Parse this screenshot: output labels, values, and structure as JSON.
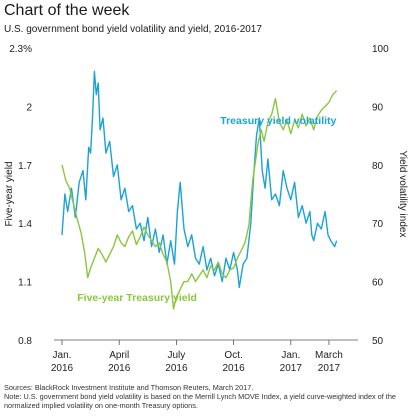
{
  "header": {
    "heading": "Chart of the week",
    "subtitle": "U.S. government bond yield volatility and yield, 2016-2017"
  },
  "footer": {
    "sources": "Sources: BlackRock Investment Institute and Thomson Reuters, March 2017.",
    "note_line1": "Note: U.S. government bond yield volatility is based on the Merrill Lynch MOVE Index, a yield curve-weighted index of the",
    "note_line2": "normalized implied volatility on one-month Treasury options."
  },
  "chart_data": {
    "type": "line",
    "title": "",
    "ylabel_left": "Five-year yield",
    "ylabel_right": "Yield volatility index",
    "ylim_left": [
      0.8,
      2.3
    ],
    "ylim_right": [
      50,
      100
    ],
    "left_ticks": [
      "0.8",
      "1.1",
      "1.4",
      "1.7",
      "2",
      "2.3%"
    ],
    "left_tick_values": [
      0.8,
      1.1,
      1.4,
      1.7,
      2.0,
      2.3
    ],
    "right_ticks": [
      "50",
      "60",
      "70",
      "80",
      "90",
      "100"
    ],
    "right_tick_values": [
      50,
      60,
      70,
      80,
      90,
      100
    ],
    "x_range": [
      0,
      15
    ],
    "x_ticks": [
      {
        "month": "Jan.",
        "year": "2016",
        "x": 0
      },
      {
        "month": "April",
        "year": "2016",
        "x": 3
      },
      {
        "month": "July",
        "year": "2016",
        "x": 6
      },
      {
        "month": "Oct.",
        "year": "2016",
        "x": 9
      },
      {
        "month": "Jan.",
        "year": "2017",
        "x": 12
      },
      {
        "month": "March",
        "year": "2017",
        "x": 14
      }
    ],
    "grid": false,
    "series": [
      {
        "name": "Treasury yield volatility",
        "axis": "right",
        "color": "#1aa3d4",
        "points": [
          [
            0,
            68
          ],
          [
            0.15,
            75
          ],
          [
            0.3,
            72
          ],
          [
            0.5,
            76
          ],
          [
            0.7,
            71
          ],
          [
            0.9,
            77
          ],
          [
            1.1,
            79
          ],
          [
            1.25,
            74
          ],
          [
            1.4,
            83
          ],
          [
            1.5,
            82
          ],
          [
            1.6,
            88
          ],
          [
            1.7,
            96
          ],
          [
            1.8,
            92
          ],
          [
            1.9,
            94
          ],
          [
            2.0,
            86
          ],
          [
            2.15,
            88
          ],
          [
            2.3,
            82
          ],
          [
            2.5,
            84
          ],
          [
            2.7,
            78
          ],
          [
            2.9,
            80
          ],
          [
            3.1,
            74
          ],
          [
            3.3,
            76
          ],
          [
            3.5,
            72
          ],
          [
            3.7,
            73
          ],
          [
            3.9,
            69
          ],
          [
            4.1,
            70
          ],
          [
            4.3,
            67
          ],
          [
            4.5,
            71
          ],
          [
            4.7,
            66
          ],
          [
            4.9,
            69
          ],
          [
            5.1,
            65
          ],
          [
            5.3,
            68
          ],
          [
            5.5,
            63
          ],
          [
            5.7,
            67
          ],
          [
            5.9,
            63
          ],
          [
            6.05,
            72
          ],
          [
            6.2,
            77
          ],
          [
            6.4,
            69
          ],
          [
            6.6,
            66
          ],
          [
            6.8,
            68
          ],
          [
            7.0,
            64
          ],
          [
            7.2,
            63
          ],
          [
            7.4,
            66
          ],
          [
            7.6,
            62
          ],
          [
            7.8,
            64
          ],
          [
            8.0,
            61
          ],
          [
            8.2,
            63
          ],
          [
            8.4,
            60
          ],
          [
            8.6,
            64
          ],
          [
            8.8,
            62
          ],
          [
            9.0,
            65
          ],
          [
            9.2,
            62
          ],
          [
            9.3,
            59
          ],
          [
            9.5,
            63
          ],
          [
            9.7,
            64
          ],
          [
            9.9,
            70
          ],
          [
            10.05,
            78
          ],
          [
            10.2,
            85
          ],
          [
            10.35,
            88
          ],
          [
            10.5,
            79
          ],
          [
            10.65,
            76
          ],
          [
            10.8,
            81
          ],
          [
            11.0,
            74
          ],
          [
            11.2,
            75
          ],
          [
            11.4,
            73
          ],
          [
            11.6,
            79
          ],
          [
            11.8,
            76
          ],
          [
            12.0,
            74
          ],
          [
            12.2,
            77
          ],
          [
            12.4,
            71
          ],
          [
            12.6,
            73
          ],
          [
            12.8,
            70
          ],
          [
            13.0,
            72
          ],
          [
            13.1,
            68
          ],
          [
            13.2,
            67
          ],
          [
            13.4,
            70
          ],
          [
            13.6,
            69
          ],
          [
            13.8,
            72
          ],
          [
            13.95,
            68
          ],
          [
            14.1,
            67
          ],
          [
            14.3,
            66
          ],
          [
            14.4,
            67
          ]
        ]
      },
      {
        "name": "Five-year Treasury yield",
        "axis": "left",
        "color": "#8cc63f",
        "points": [
          [
            0,
            1.7
          ],
          [
            0.2,
            1.62
          ],
          [
            0.4,
            1.58
          ],
          [
            0.6,
            1.5
          ],
          [
            0.8,
            1.42
          ],
          [
            1.0,
            1.35
          ],
          [
            1.2,
            1.24
          ],
          [
            1.35,
            1.12
          ],
          [
            1.5,
            1.17
          ],
          [
            1.7,
            1.22
          ],
          [
            1.9,
            1.27
          ],
          [
            2.1,
            1.24
          ],
          [
            2.3,
            1.2
          ],
          [
            2.5,
            1.24
          ],
          [
            2.7,
            1.28
          ],
          [
            2.9,
            1.34
          ],
          [
            3.1,
            1.3
          ],
          [
            3.3,
            1.28
          ],
          [
            3.5,
            1.33
          ],
          [
            3.7,
            1.36
          ],
          [
            3.9,
            1.29
          ],
          [
            4.1,
            1.33
          ],
          [
            4.3,
            1.38
          ],
          [
            4.5,
            1.34
          ],
          [
            4.7,
            1.31
          ],
          [
            4.9,
            1.28
          ],
          [
            5.1,
            1.3
          ],
          [
            5.3,
            1.24
          ],
          [
            5.5,
            1.2
          ],
          [
            5.7,
            1.1
          ],
          [
            5.85,
            0.96
          ],
          [
            6.0,
            1.02
          ],
          [
            6.2,
            1.06
          ],
          [
            6.4,
            1.1
          ],
          [
            6.6,
            1.1
          ],
          [
            6.8,
            1.14
          ],
          [
            7.0,
            1.1
          ],
          [
            7.2,
            1.13
          ],
          [
            7.4,
            1.16
          ],
          [
            7.6,
            1.12
          ],
          [
            7.8,
            1.18
          ],
          [
            8.0,
            1.16
          ],
          [
            8.2,
            1.2
          ],
          [
            8.4,
            1.14
          ],
          [
            8.6,
            1.12
          ],
          [
            8.8,
            1.16
          ],
          [
            9.0,
            1.17
          ],
          [
            9.2,
            1.22
          ],
          [
            9.4,
            1.26
          ],
          [
            9.6,
            1.3
          ],
          [
            9.8,
            1.39
          ],
          [
            10.0,
            1.62
          ],
          [
            10.15,
            1.72
          ],
          [
            10.3,
            1.82
          ],
          [
            10.45,
            1.88
          ],
          [
            10.6,
            1.82
          ],
          [
            10.8,
            1.92
          ],
          [
            11.0,
            1.96
          ],
          [
            11.2,
            2.04
          ],
          [
            11.4,
            1.92
          ],
          [
            11.6,
            1.88
          ],
          [
            11.8,
            1.93
          ],
          [
            12.0,
            1.86
          ],
          [
            12.2,
            1.93
          ],
          [
            12.4,
            1.89
          ],
          [
            12.6,
            1.96
          ],
          [
            12.8,
            1.9
          ],
          [
            13.0,
            1.94
          ],
          [
            13.2,
            1.88
          ],
          [
            13.4,
            1.95
          ],
          [
            13.6,
            1.98
          ],
          [
            13.8,
            2.0
          ],
          [
            14.0,
            2.02
          ],
          [
            14.2,
            2.06
          ],
          [
            14.4,
            2.08
          ]
        ]
      }
    ],
    "annotations": [
      {
        "text": "Treasury yield volatility",
        "x": 8.3,
        "y": 1.91,
        "color": "#1aa3d4"
      },
      {
        "text": "Five-year Treasury yield",
        "x": 0.8,
        "y": 1.0,
        "color": "#8cc63f"
      }
    ]
  }
}
